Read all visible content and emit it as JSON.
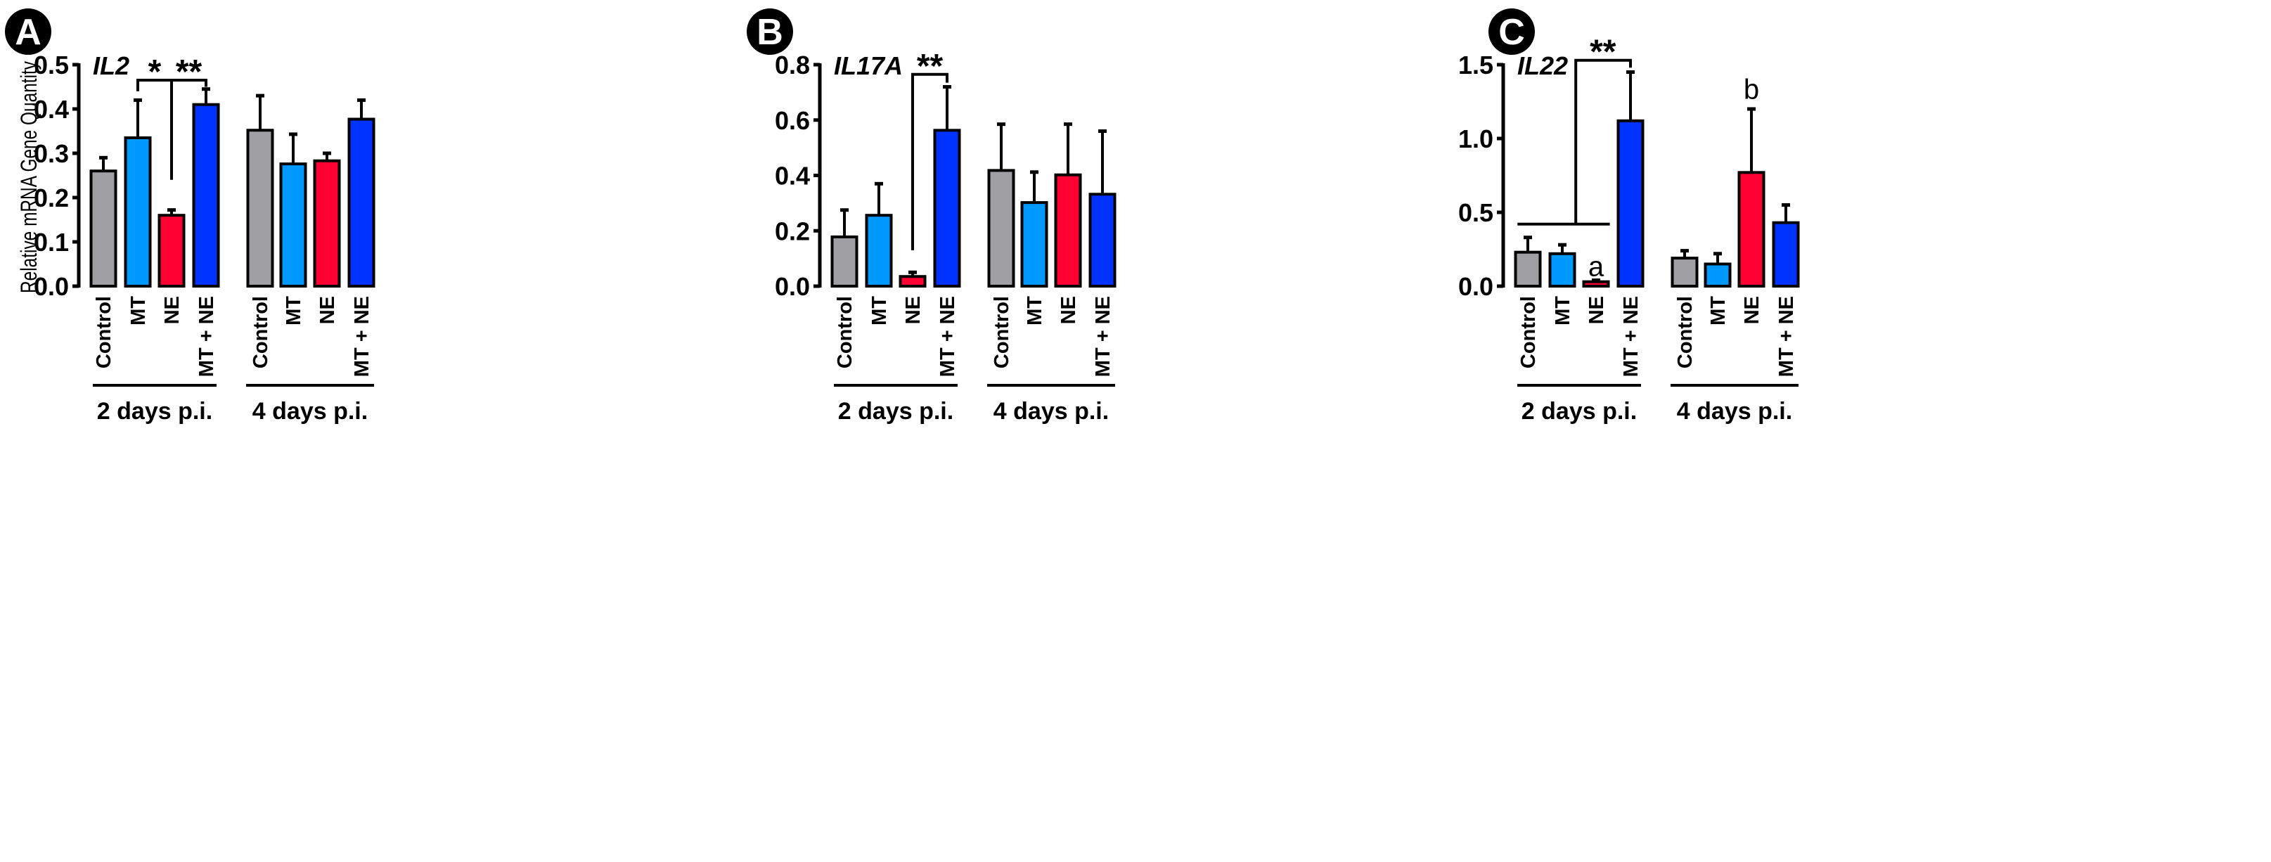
{
  "colors": {
    "Control": "#a0a0a4",
    "MT": "#0099ff",
    "NE": "#ff0033",
    "MT + NE": "#0033ff"
  },
  "chart_data": [
    {
      "type": "bar",
      "panel": "A",
      "gene": "IL2",
      "ylabel": "Relative mRNA Gene Quantity",
      "ylim": [
        0,
        0.5
      ],
      "yticks": [
        "0.0",
        "0.1",
        "0.2",
        "0.3",
        "0.4",
        "0.5"
      ],
      "ytick_values": [
        0,
        0.1,
        0.2,
        0.3,
        0.4,
        0.5
      ],
      "groups": [
        "2 days p.i.",
        "4 days p.i."
      ],
      "categories": [
        "Control",
        "MT",
        "NE",
        "MT + NE",
        "Control",
        "MT",
        "NE",
        "MT + NE"
      ],
      "values": [
        0.26,
        0.335,
        0.16,
        0.41,
        0.352,
        0.276,
        0.283,
        0.377
      ],
      "error_upper": [
        0.29,
        0.42,
        0.172,
        0.445,
        0.43,
        0.343,
        0.3,
        0.42
      ],
      "annotations": [
        {
          "kind": "bracket3",
          "left": 1,
          "mid": 2,
          "right": 3,
          "y": 0.465,
          "left_end": 0.44,
          "mid_end": 0.24,
          "right_end": 0.45
        },
        {
          "kind": "star",
          "text": "*",
          "at": 1.5,
          "y": 0.475
        },
        {
          "kind": "star",
          "text": "**",
          "at": 2.5,
          "y": 0.475
        }
      ]
    },
    {
      "type": "bar",
      "panel": "B",
      "gene": "IL17A",
      "ylabel": "",
      "ylim": [
        0,
        0.8
      ],
      "yticks": [
        "0.0",
        "0.2",
        "0.4",
        "0.6",
        "0.8"
      ],
      "ytick_values": [
        0,
        0.2,
        0.4,
        0.6,
        0.8
      ],
      "groups": [
        "2 days p.i.",
        "4 days p.i."
      ],
      "categories": [
        "Control",
        "MT",
        "NE",
        "MT + NE",
        "Control",
        "MT",
        "NE",
        "MT + NE"
      ],
      "values": [
        0.178,
        0.256,
        0.035,
        0.563,
        0.418,
        0.302,
        0.402,
        0.332
      ],
      "error_upper": [
        0.275,
        0.37,
        0.05,
        0.72,
        0.585,
        0.412,
        0.585,
        0.56
      ],
      "annotations": [
        {
          "kind": "bracket2",
          "left": 2,
          "right": 3,
          "y": 0.765,
          "left_end": 0.13,
          "right_end": 0.735
        },
        {
          "kind": "star",
          "text": "**",
          "at": 2.5,
          "y": 0.78
        }
      ]
    },
    {
      "type": "bar",
      "panel": "C",
      "gene": "IL22",
      "ylabel": "",
      "ylim": [
        0,
        1.5
      ],
      "yticks": [
        "0.0",
        "0.5",
        "1.0",
        "1.5"
      ],
      "ytick_values": [
        0,
        0.5,
        1.0,
        1.5
      ],
      "groups": [
        "2 days p.i.",
        "4 days p.i."
      ],
      "categories": [
        "Control",
        "MT",
        "NE",
        "MT + NE",
        "Control",
        "MT",
        "NE",
        "MT + NE"
      ],
      "values": [
        0.23,
        0.22,
        0.03,
        1.12,
        0.19,
        0.15,
        0.77,
        0.43
      ],
      "error_upper": [
        0.33,
        0.28,
        0.04,
        1.45,
        0.24,
        0.22,
        1.2,
        0.55
      ],
      "annotations": [
        {
          "kind": "hline",
          "from": -0.3,
          "to": 2.4,
          "y": 0.42
        },
        {
          "kind": "bracket2",
          "left": 1.4,
          "right": 3,
          "y": 1.53,
          "left_end": 0.42,
          "right_end": 1.48
        },
        {
          "kind": "star",
          "text": "**",
          "at": 2.2,
          "y": 1.56
        },
        {
          "kind": "letter",
          "text": "a",
          "at": 2,
          "y": 0.07
        },
        {
          "kind": "letter",
          "text": "b",
          "at": 6,
          "y": 1.27
        }
      ]
    }
  ]
}
